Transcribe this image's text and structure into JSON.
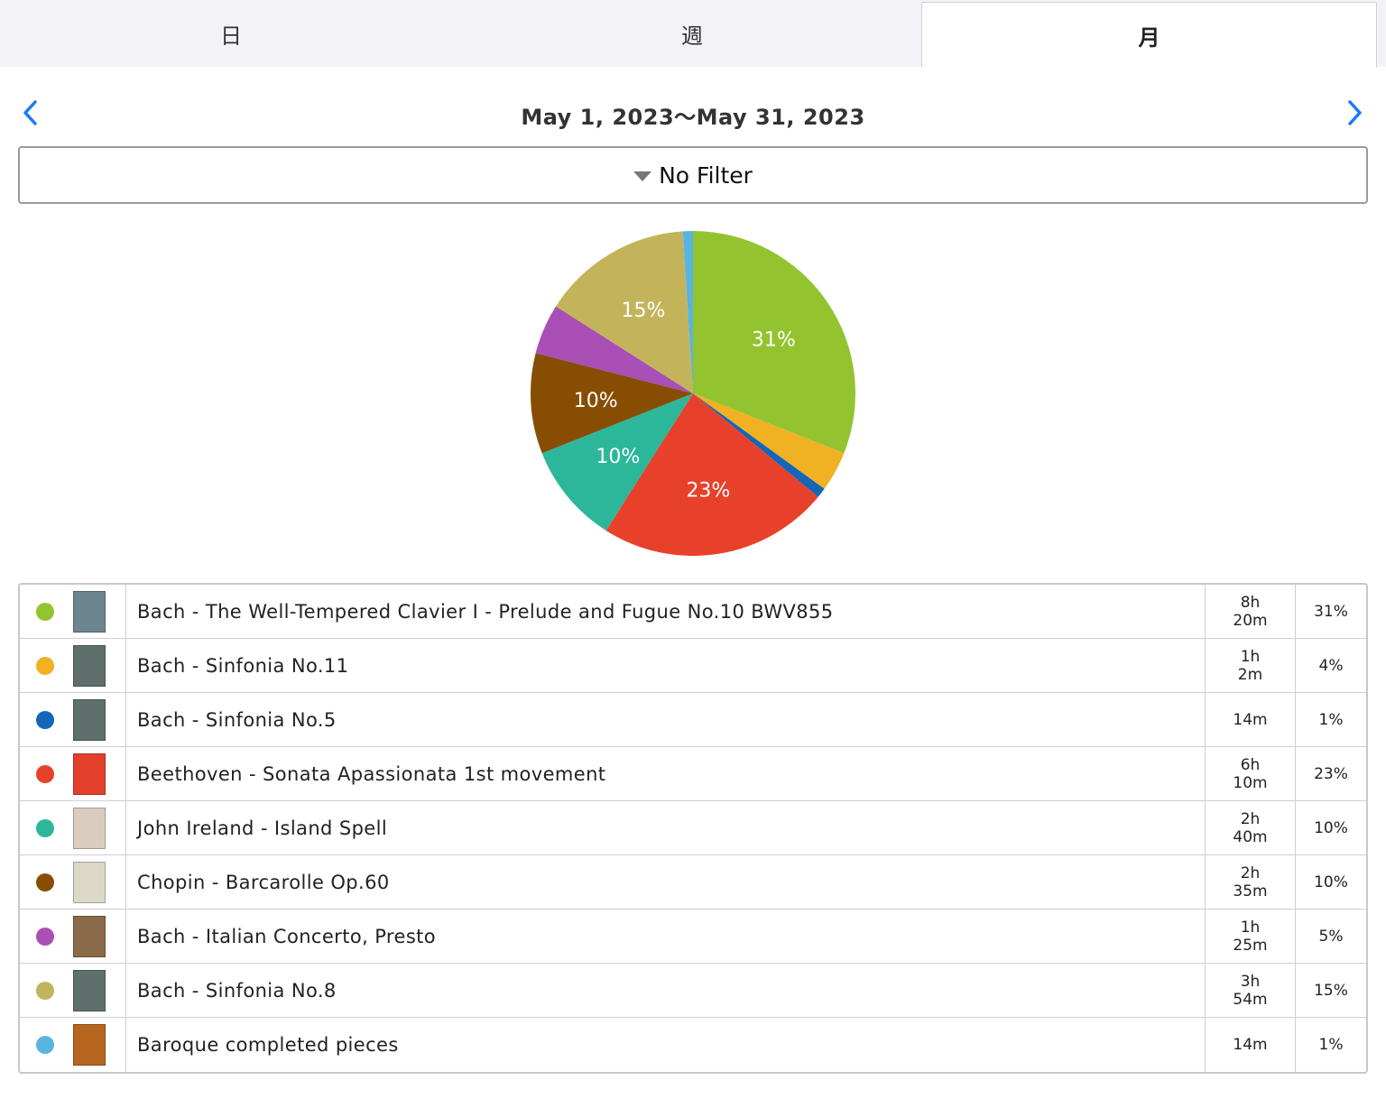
{
  "tabs": [
    {
      "label": "日"
    },
    {
      "label": "週"
    },
    {
      "label": "月"
    }
  ],
  "selected_tab": "月",
  "date_range": "May 1, 2023〜May 31, 2023",
  "filter": {
    "label": "No Filter"
  },
  "chart_data": {
    "type": "pie",
    "slices": [
      {
        "label": "Bach - The Well-Tempered Clavier I - Prelude and Fugue No.10 BWV855",
        "value": 31,
        "color": "#93c42f",
        "data_label": "31%"
      },
      {
        "label": "Bach - Sinfonia No.11",
        "value": 4,
        "color": "#f0b122",
        "data_label": ""
      },
      {
        "label": "Bach - Sinfonia No.5",
        "value": 1,
        "color": "#1565b8",
        "data_label": ""
      },
      {
        "label": "Beethoven - Sonata Apassionata 1st movement",
        "value": 23,
        "color": "#e8412b",
        "data_label": "23%"
      },
      {
        "label": "John Ireland - Island Spell",
        "value": 10,
        "color": "#2cb79a",
        "data_label": "10%"
      },
      {
        "label": "Chopin - Barcarolle Op.60",
        "value": 10,
        "color": "#874e03",
        "data_label": "10%"
      },
      {
        "label": "Bach - Italian Concerto, Presto",
        "value": 5,
        "color": "#a94fb5",
        "data_label": ""
      },
      {
        "label": "Bach - Sinfonia No.8",
        "value": 15,
        "color": "#c3b45c",
        "data_label": "15%"
      },
      {
        "label": "Baroque completed pieces",
        "value": 1,
        "color": "#5ab4e0",
        "data_label": ""
      }
    ]
  },
  "rows": [
    {
      "title": "Bach - The Well-Tempered Clavier I - Prelude and Fugue No.10 BWV855",
      "time_line1": "8h",
      "time_line2": "20m",
      "percent": "31%",
      "color": "#93c42f",
      "thumb_color": "#6b8690"
    },
    {
      "title": "Bach - Sinfonia No.11",
      "time_line1": "1h",
      "time_line2": "2m",
      "percent": "4%",
      "color": "#f0b122",
      "thumb_color": "#5f6f6c"
    },
    {
      "title": "Bach - Sinfonia No.5",
      "time_line1": "14m",
      "time_line2": "",
      "percent": "1%",
      "color": "#1565b8",
      "thumb_color": "#5f6f6c"
    },
    {
      "title": "Beethoven - Sonata Apassionata 1st movement",
      "time_line1": "6h",
      "time_line2": "10m",
      "percent": "23%",
      "color": "#e8412b",
      "thumb_color": "#e2402a"
    },
    {
      "title": "John Ireland - Island Spell",
      "time_line1": "2h",
      "time_line2": "40m",
      "percent": "10%",
      "color": "#2cb79a",
      "thumb_color": "#d8cdbf"
    },
    {
      "title": "Chopin - Barcarolle Op.60",
      "time_line1": "2h",
      "time_line2": "35m",
      "percent": "10%",
      "color": "#874e03",
      "thumb_color": "#dcd8c8"
    },
    {
      "title": "Bach - Italian Concerto, Presto",
      "time_line1": "1h",
      "time_line2": "25m",
      "percent": "5%",
      "color": "#a94fb5",
      "thumb_color": "#8a6a48"
    },
    {
      "title": "Bach - Sinfonia No.8",
      "time_line1": "3h",
      "time_line2": "54m",
      "percent": "15%",
      "color": "#c3b45c",
      "thumb_color": "#5f6f6c"
    },
    {
      "title": "Baroque completed pieces",
      "time_line1": "14m",
      "time_line2": "",
      "percent": "1%",
      "color": "#5ab4e0",
      "thumb_color": "#b5651d"
    }
  ]
}
